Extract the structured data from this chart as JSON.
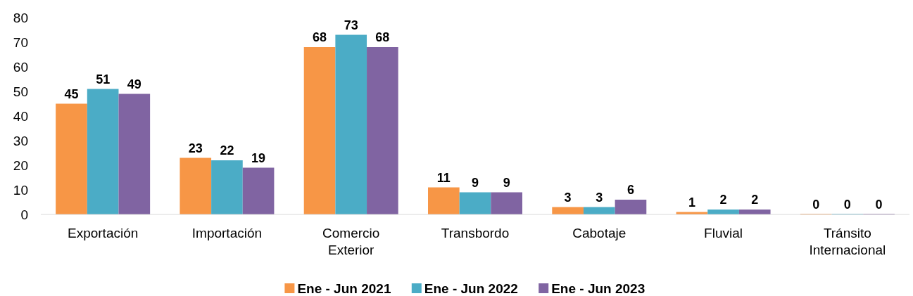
{
  "chart_data": {
    "type": "bar",
    "categories": [
      "Exportación",
      "Importación",
      "Comercio Exterior",
      "Transbordo",
      "Cabotaje",
      "Fluvial",
      "Tránsito Internacional"
    ],
    "series": [
      {
        "name": "Ene - Jun 2021",
        "color": "#f79646",
        "values": [
          45,
          23,
          68,
          11,
          3,
          1,
          0
        ]
      },
      {
        "name": "Ene - Jun 2022",
        "color": "#4bacc6",
        "values": [
          51,
          22,
          73,
          9,
          3,
          2,
          0
        ]
      },
      {
        "name": "Ene - Jun 2023",
        "color": "#8064a2",
        "values": [
          49,
          19,
          68,
          9,
          6,
          2,
          0
        ]
      }
    ],
    "ylim": [
      0,
      80
    ],
    "yticks": [
      0,
      10,
      20,
      30,
      40,
      50,
      60,
      70,
      80
    ],
    "grid": false,
    "legend": "bottom",
    "data_labels": true
  }
}
